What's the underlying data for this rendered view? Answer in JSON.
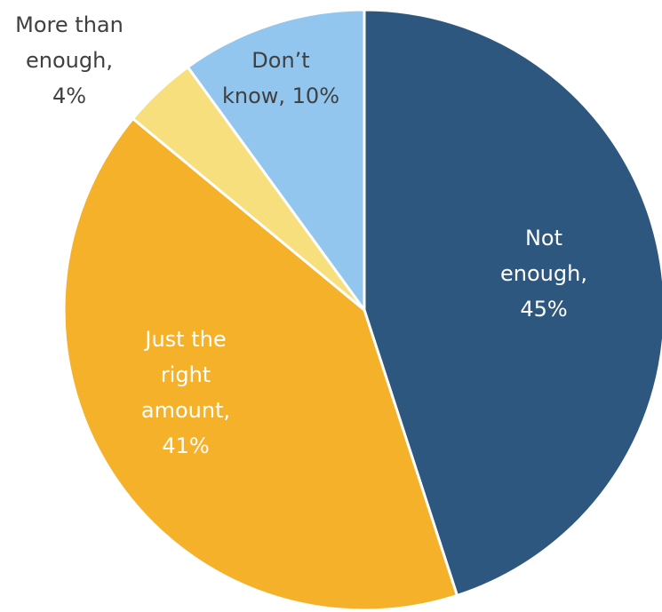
{
  "chart_data": {
    "type": "pie",
    "title": "",
    "slices": [
      {
        "name": "Not enough",
        "value": 45,
        "label_lines": [
          "Not",
          "enough,",
          "45%"
        ],
        "color": "#2e5780",
        "text_color": "#ffffff"
      },
      {
        "name": "Just the right amount",
        "value": 41,
        "label_lines": [
          "Just the",
          "right",
          "amount,",
          "41%"
        ],
        "color": "#f6b12b",
        "text_color": "#ffffff"
      },
      {
        "name": "More than enough",
        "value": 4,
        "label_lines": [
          "More than",
          "enough,",
          "4%"
        ],
        "color": "#f7df7e",
        "text_color": "#404040"
      },
      {
        "name": "Don’t know",
        "value": 10,
        "label_lines": [
          "Don’t",
          "know, 10%"
        ],
        "color": "#92c6ef",
        "text_color": "#404040"
      }
    ],
    "start_angle_deg": 0,
    "direction": "clockwise",
    "legend": "none"
  }
}
